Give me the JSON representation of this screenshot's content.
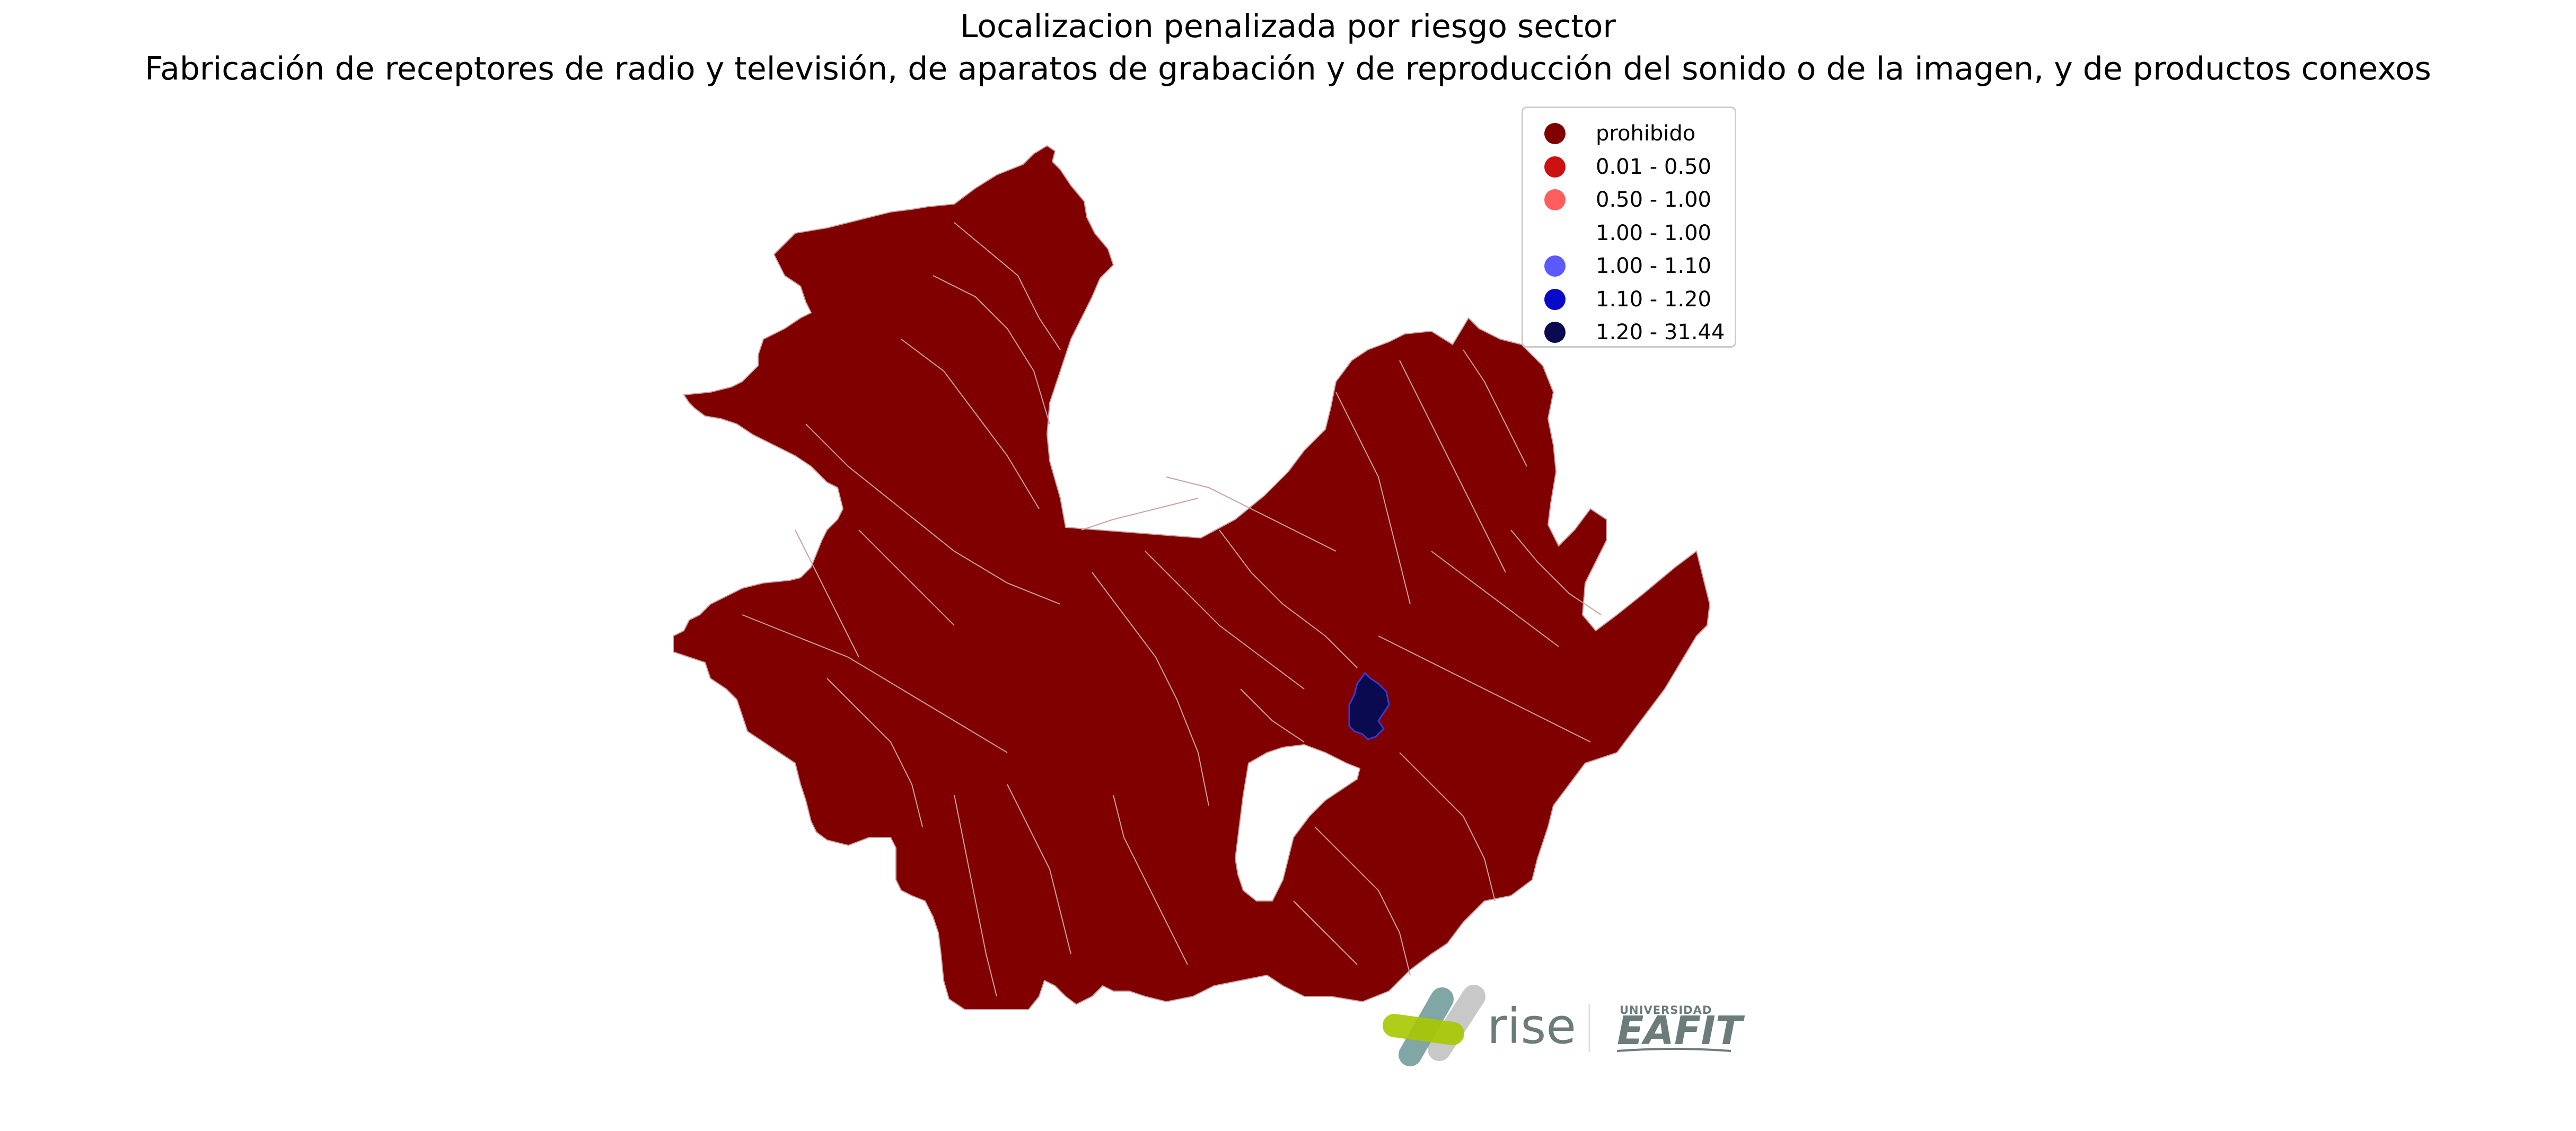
{
  "title": {
    "line1": "Localizacion penalizada por riesgo sector",
    "line2": "Fabricación de receptores de radio y televisión, de aparatos de grabación y de reproducción del sonido o de la imagen, y de productos conexos"
  },
  "legend": {
    "items": [
      {
        "label": "prohibido",
        "color": "#800000"
      },
      {
        "label": "0.01 - 0.50",
        "color": "#cc1111"
      },
      {
        "label": "0.50 - 1.00",
        "color": "#ff5e5e"
      },
      {
        "label": "1.00 - 1.00",
        "color": "#ffffff"
      },
      {
        "label": "1.00 - 1.10",
        "color": "#5a5aff"
      },
      {
        "label": "1.10 - 1.20",
        "color": "#0909c9"
      },
      {
        "label": "1.20 - 31.44",
        "color": "#0a0a50"
      }
    ]
  },
  "map": {
    "region_fill_color": "#800000",
    "highlight_fill_color": "#0a0a50",
    "highlight_legend_class": "1.20 - 31.44",
    "border_color": "#c9a0a0"
  },
  "logos": {
    "rise": "rise",
    "eafit_top": "UNIVERSIDAD",
    "eafit_main": "EAFIT"
  }
}
